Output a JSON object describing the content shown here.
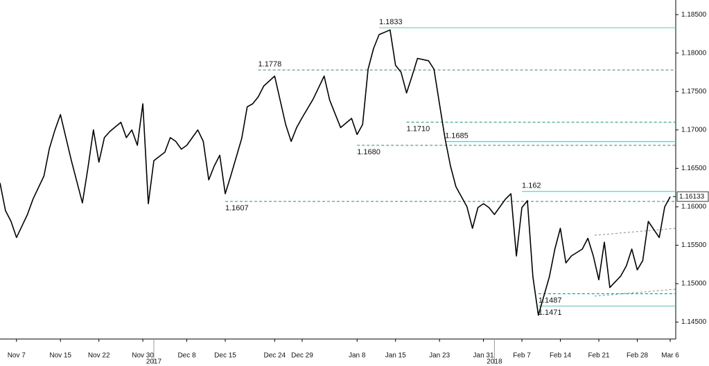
{
  "chart_data": {
    "type": "line",
    "color": "#000000",
    "xlim": [
      "2017-11-04",
      "2018-03-07"
    ],
    "ylim": [
      1.1428,
      1.1869
    ],
    "yticks": [
      {
        "value": 1.145,
        "label": "1.14500"
      },
      {
        "value": 1.15,
        "label": "1.15000"
      },
      {
        "value": 1.155,
        "label": "1.15500"
      },
      {
        "value": 1.16,
        "label": "1.16000"
      },
      {
        "value": 1.165,
        "label": "1.16500"
      },
      {
        "value": 1.17,
        "label": "1.17000"
      },
      {
        "value": 1.175,
        "label": "1.17500"
      },
      {
        "value": 1.18,
        "label": "1.18000"
      },
      {
        "value": 1.185,
        "label": "1.18500"
      }
    ],
    "xticks": [
      {
        "value": "2017-11-07",
        "label": "Nov 7"
      },
      {
        "value": "2017-11-15",
        "label": "Nov 15"
      },
      {
        "value": "2017-11-22",
        "label": "Nov 22"
      },
      {
        "value": "2017-11-30",
        "label": "Nov 30"
      },
      {
        "value": "2017-12-08",
        "label": "Dec 8"
      },
      {
        "value": "2017-12-15",
        "label": "Dec 15"
      },
      {
        "value": "2017-12-24",
        "label": "Dec 24"
      },
      {
        "value": "2017-12-29",
        "label": "Dec 29"
      },
      {
        "value": "2018-01-08",
        "label": "Jan 8"
      },
      {
        "value": "2018-01-15",
        "label": "Jan 15"
      },
      {
        "value": "2018-01-23",
        "label": "Jan 23"
      },
      {
        "value": "2018-01-31",
        "label": "Jan 31"
      },
      {
        "value": "2018-02-07",
        "label": "Feb 7"
      },
      {
        "value": "2018-02-14",
        "label": "Feb 14"
      },
      {
        "value": "2018-02-21",
        "label": "Feb 21"
      },
      {
        "value": "2018-02-28",
        "label": "Feb 28"
      },
      {
        "value": "2018-03-06",
        "label": "Mar 6"
      }
    ],
    "year_ticks": [
      {
        "value": "2017-12-02",
        "label": "2017"
      },
      {
        "value": "2018-02-02",
        "label": "2018"
      }
    ],
    "x": [
      "2017-11-04",
      "2017-11-05",
      "2017-11-06",
      "2017-11-07",
      "2017-11-08",
      "2017-11-09",
      "2017-11-10",
      "2017-11-12",
      "2017-11-13",
      "2017-11-14",
      "2017-11-15",
      "2017-11-16",
      "2017-11-17",
      "2017-11-19",
      "2017-11-20",
      "2017-11-21",
      "2017-11-22",
      "2017-11-23",
      "2017-11-24",
      "2017-11-26",
      "2017-11-27",
      "2017-11-28",
      "2017-11-29",
      "2017-11-30",
      "2017-12-01",
      "2017-12-02",
      "2017-12-04",
      "2017-12-05",
      "2017-12-06",
      "2017-12-07",
      "2017-12-08",
      "2017-12-10",
      "2017-12-11",
      "2017-12-12",
      "2017-12-13",
      "2017-12-14",
      "2017-12-15",
      "2017-12-16",
      "2017-12-18",
      "2017-12-19",
      "2017-12-20",
      "2017-12-21",
      "2017-12-22",
      "2017-12-24",
      "2017-12-26",
      "2017-12-27",
      "2017-12-28",
      "2017-12-29",
      "2017-12-31",
      "2018-01-02",
      "2018-01-03",
      "2018-01-04",
      "2018-01-05",
      "2018-01-07",
      "2018-01-08",
      "2018-01-09",
      "2018-01-10",
      "2018-01-11",
      "2018-01-12",
      "2018-01-14",
      "2018-01-15",
      "2018-01-16",
      "2018-01-17",
      "2018-01-18",
      "2018-01-19",
      "2018-01-21",
      "2018-01-22",
      "2018-01-23",
      "2018-01-24",
      "2018-01-25",
      "2018-01-26",
      "2018-01-28",
      "2018-01-29",
      "2018-01-30",
      "2018-01-31",
      "2018-02-01",
      "2018-02-02",
      "2018-02-04",
      "2018-02-05",
      "2018-02-06",
      "2018-02-07",
      "2018-02-08",
      "2018-02-09",
      "2018-02-10",
      "2018-02-12",
      "2018-02-13",
      "2018-02-14",
      "2018-02-15",
      "2018-02-16",
      "2018-02-18",
      "2018-02-19",
      "2018-02-20",
      "2018-02-21",
      "2018-02-22",
      "2018-02-23",
      "2018-02-25",
      "2018-02-26",
      "2018-02-27",
      "2018-02-28",
      "2018-03-01",
      "2018-03-02",
      "2018-03-04",
      "2018-03-05",
      "2018-03-06"
    ],
    "values": [
      1.1631,
      1.1595,
      1.1581,
      1.156,
      1.1575,
      1.159,
      1.161,
      1.164,
      1.1676,
      1.17,
      1.172,
      1.169,
      1.166,
      1.1605,
      1.165,
      1.17,
      1.1658,
      1.169,
      1.1698,
      1.171,
      1.169,
      1.17,
      1.168,
      1.1734,
      1.1604,
      1.166,
      1.1671,
      1.169,
      1.1685,
      1.1675,
      1.168,
      1.17,
      1.1685,
      1.1635,
      1.1653,
      1.1667,
      1.1617,
      1.164,
      1.1689,
      1.173,
      1.1734,
      1.1743,
      1.1757,
      1.177,
      1.1707,
      1.1685,
      1.1703,
      1.1716,
      1.174,
      1.177,
      1.1739,
      1.1721,
      1.1703,
      1.1715,
      1.1694,
      1.1707,
      1.1779,
      1.1806,
      1.1824,
      1.183,
      1.1784,
      1.1775,
      1.1748,
      1.177,
      1.1793,
      1.179,
      1.1779,
      1.1734,
      1.1689,
      1.1653,
      1.1626,
      1.16,
      1.1572,
      1.1599,
      1.1604,
      1.1599,
      1.159,
      1.161,
      1.1617,
      1.1536,
      1.1599,
      1.1608,
      1.1509,
      1.1459,
      1.1509,
      1.1545,
      1.1572,
      1.1527,
      1.1536,
      1.1545,
      1.1559,
      1.1536,
      1.1505,
      1.1554,
      1.1495,
      1.151,
      1.1523,
      1.1545,
      1.1518,
      1.153,
      1.1581,
      1.156,
      1.16,
      1.1613
    ],
    "last_price": 1.16133,
    "levels": [
      {
        "value": 1.1833,
        "label": "1.1833",
        "start": "2018-01-12",
        "style": "solid",
        "label_side": "above"
      },
      {
        "value": 1.1778,
        "label": "1.1778",
        "start": "2017-12-21",
        "style": "dashed",
        "label_side": "above"
      },
      {
        "value": 1.171,
        "label": "1.1710",
        "start": "2018-01-17",
        "style": "dashed",
        "label_side": "below"
      },
      {
        "value": 1.1685,
        "label": "1.1685",
        "start": "2018-01-24",
        "style": "solid",
        "label_side": "above"
      },
      {
        "value": 1.168,
        "label": "1.1680",
        "start": "2018-01-08",
        "style": "dashed",
        "label_side": "below"
      },
      {
        "value": 1.162,
        "label": "1.162",
        "start": "2018-02-07",
        "style": "solid",
        "label_side": "above"
      },
      {
        "value": 1.1607,
        "label": "1.1607",
        "start": "2017-12-15",
        "style": "dashed",
        "label_side": "below"
      },
      {
        "value": 1.1487,
        "label": "1.1487",
        "start": "2018-02-10",
        "style": "dashed",
        "label_side": "below"
      },
      {
        "value": 1.1471,
        "label": "1.1471",
        "start": "2018-02-10",
        "style": "solid",
        "label_side": "below"
      }
    ]
  }
}
